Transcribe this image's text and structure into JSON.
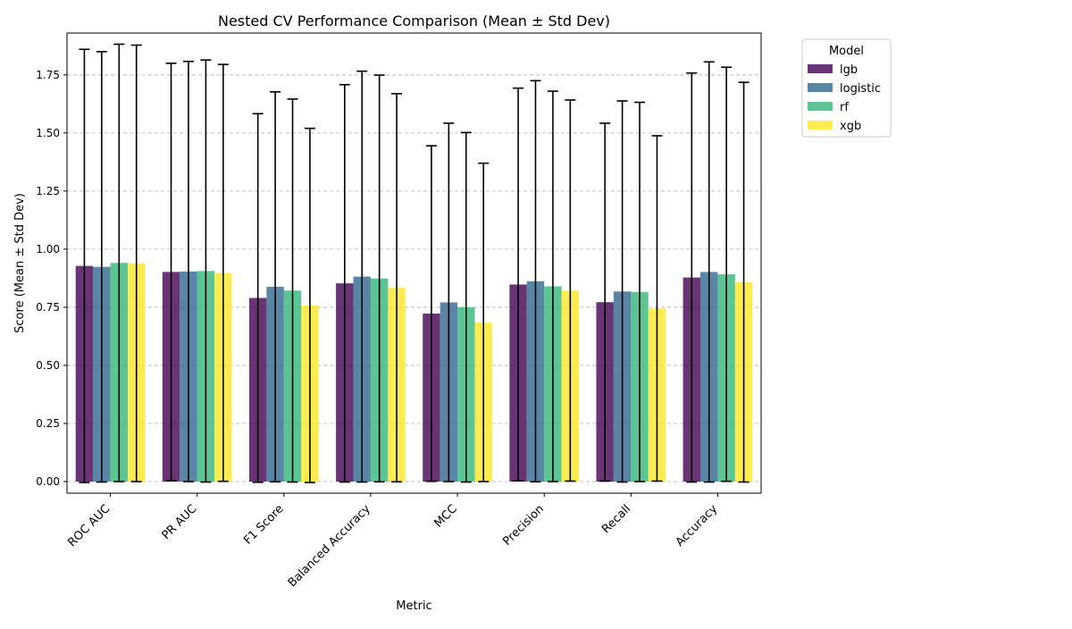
{
  "chart_data": {
    "type": "bar",
    "title": "Nested CV Performance Comparison (Mean ± Std Dev)",
    "xlabel": "Metric",
    "ylabel": "Score (Mean ± Std Dev)",
    "ylim": [
      -0.05,
      1.93
    ],
    "yticks": [
      "0.00",
      "0.25",
      "0.50",
      "0.75",
      "1.00",
      "1.25",
      "1.50",
      "1.75"
    ],
    "grid": "y-axis dashed",
    "legend": {
      "title": "Model",
      "placement": "outside top-right"
    },
    "categories": [
      "ROC AUC",
      "PR AUC",
      "F1 Score",
      "Balanced Accuracy",
      "MCC",
      "Precision",
      "Recall",
      "Accuracy"
    ],
    "series": [
      {
        "name": "lgb",
        "color": "#440154",
        "values": [
          0.928,
          0.902,
          0.79,
          0.853,
          0.723,
          0.848,
          0.772,
          0.878
        ],
        "std": [
          0.932,
          0.898,
          0.793,
          0.855,
          0.722,
          0.845,
          0.77,
          0.88
        ]
      },
      {
        "name": "logistic",
        "color": "#31688e",
        "values": [
          0.924,
          0.904,
          0.838,
          0.882,
          0.771,
          0.862,
          0.818,
          0.902
        ],
        "std": [
          0.926,
          0.904,
          0.839,
          0.884,
          0.771,
          0.863,
          0.82,
          0.904
        ]
      },
      {
        "name": "rf",
        "color": "#35b779",
        "values": [
          0.941,
          0.906,
          0.822,
          0.874,
          0.75,
          0.84,
          0.816,
          0.892
        ],
        "std": [
          0.941,
          0.908,
          0.824,
          0.875,
          0.752,
          0.84,
          0.816,
          0.891
        ]
      },
      {
        "name": "xgb",
        "color": "#fde725",
        "values": [
          0.939,
          0.898,
          0.758,
          0.834,
          0.685,
          0.822,
          0.745,
          0.858
        ],
        "std": [
          0.939,
          0.897,
          0.762,
          0.835,
          0.685,
          0.82,
          0.743,
          0.86
        ]
      }
    ]
  }
}
